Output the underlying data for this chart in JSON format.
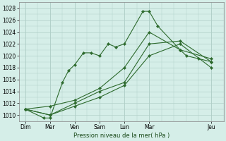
{
  "background_color": "#d5eee8",
  "grid_color": "#b0cfc8",
  "line_color": "#2d6a2d",
  "marker_color": "#2d6a2d",
  "xlabel": "Pression niveau de la mer( hPa )",
  "ylim": [
    1009,
    1029
  ],
  "yticks": [
    1010,
    1012,
    1014,
    1016,
    1018,
    1020,
    1022,
    1024,
    1026,
    1028
  ],
  "xtick_labels": [
    "Dim",
    "Mer",
    "Ven",
    "Sam",
    "Lun",
    "Mar",
    "Jeu"
  ],
  "xtick_positions": [
    0,
    2,
    4,
    6,
    8,
    10,
    15
  ],
  "xlim": [
    -0.5,
    16
  ],
  "series": [
    {
      "x": [
        0,
        1.5,
        2.0,
        3.0,
        3.5,
        4.0,
        4.7,
        5.3,
        6.0,
        6.7,
        7.3,
        8.0,
        9.5,
        10.0,
        10.7,
        12.5,
        13.0,
        14.0,
        15.0
      ],
      "y": [
        1011,
        1009.5,
        1009.5,
        1015.5,
        1017.5,
        1018.5,
        1020.5,
        1020.5,
        1020,
        1022,
        1021.5,
        1022,
        1027.5,
        1027.5,
        1025,
        1021,
        1020,
        1019.5,
        1019
      ]
    },
    {
      "x": [
        0,
        2,
        4,
        6,
        8,
        10,
        12.5,
        15
      ],
      "y": [
        1011,
        1010,
        1011.5,
        1013,
        1015,
        1020,
        1022,
        1018
      ]
    },
    {
      "x": [
        0,
        2,
        4,
        6,
        8,
        10,
        12.5,
        15
      ],
      "y": [
        1011,
        1010,
        1012,
        1014,
        1015.5,
        1022,
        1022.5,
        1019
      ]
    },
    {
      "x": [
        0,
        2,
        4,
        6,
        8,
        10,
        12.5,
        15
      ],
      "y": [
        1011,
        1011.5,
        1012.5,
        1014.5,
        1018,
        1024,
        1021,
        1019.5
      ]
    }
  ]
}
